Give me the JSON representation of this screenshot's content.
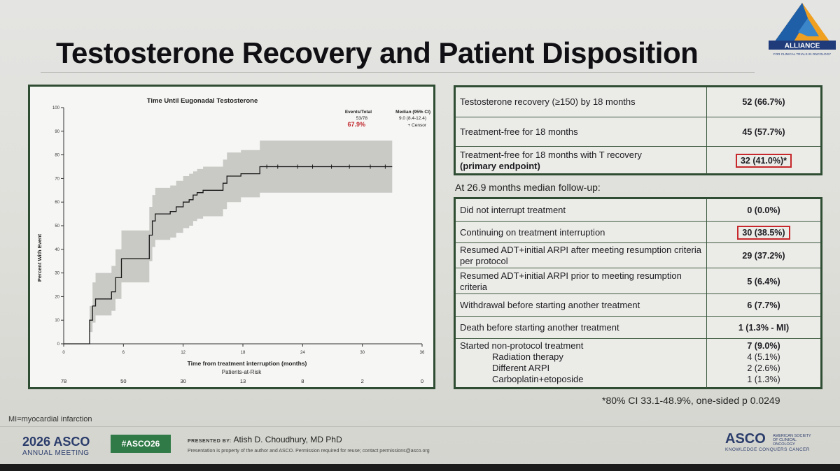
{
  "slide": {
    "title": "Testosterone Recovery and Patient Disposition",
    "logo_text": "ALLIANCE",
    "logo_subtext": "FOR CLINICAL TRIALS IN ONCOLOGY"
  },
  "chart_data": {
    "type": "line",
    "title": "Time Until Eugonadal Testosterone",
    "xlabel": "Time from treatment interruption (months)",
    "ylabel": "Percent With Event",
    "xlim": [
      0,
      36
    ],
    "ylim": [
      0,
      100
    ],
    "x_ticks": [
      0,
      6,
      12,
      18,
      24,
      30,
      36
    ],
    "y_ticks": [
      0,
      10,
      20,
      30,
      40,
      50,
      60,
      70,
      80,
      90,
      100
    ],
    "legend": {
      "header_events": "Events/Total",
      "header_median": "Median (95% CI)",
      "events_value": "53/78",
      "median_value": "9.0 (8.4-12.4)",
      "percent": "67.9%",
      "censor_label": "+ Censor"
    },
    "risk_table": {
      "label": "Patients-at-Risk",
      "values": [
        "78",
        "50",
        "30",
        "13",
        "8",
        "2",
        "0"
      ]
    },
    "series": [
      {
        "x": [
          0,
          2.3,
          2.6,
          2.9,
          3.2,
          4.5,
          4.8,
          5.2,
          5.8,
          8.4,
          8.6,
          8.9,
          9.2,
          10.4,
          10.7,
          11.3,
          12.0,
          12.6,
          13.0,
          13.4,
          14.0,
          15.4,
          16.0,
          16.4,
          17.8,
          18.5,
          19.7,
          21.5,
          33.0
        ],
        "y": [
          0,
          0,
          10,
          16,
          19,
          19,
          22,
          28,
          36,
          36,
          46,
          52,
          55,
          55,
          56,
          58,
          60,
          61,
          63,
          64,
          65,
          65,
          68,
          71,
          72,
          72,
          75,
          75,
          75
        ]
      }
    ],
    "band_upper": [
      0,
      0,
      16,
      26,
      30,
      30,
      33,
      40,
      48,
      48,
      58,
      63,
      66,
      66,
      67,
      69,
      71,
      72,
      73,
      74,
      75,
      75,
      78,
      81,
      82,
      82,
      86,
      86,
      86
    ],
    "band_lower": [
      0,
      0,
      5,
      9,
      12,
      12,
      14,
      19,
      26,
      26,
      35,
      41,
      44,
      44,
      45,
      47,
      49,
      50,
      52,
      53,
      54,
      54,
      57,
      60,
      62,
      62,
      64,
      64,
      64
    ],
    "censor_x": [
      20.4,
      21.5,
      23.5,
      25.0,
      26.9,
      28.7,
      30.8,
      32.3
    ]
  },
  "table1": {
    "rows": [
      {
        "label": "Testosterone recovery (≥150) by 18 months",
        "value": "52 (66.7%)"
      },
      {
        "label": "Treatment-free for 18 months",
        "value": "45 (57.7%)"
      },
      {
        "label": "Treatment-free for 18 months with T recovery",
        "label_bold": "(primary endpoint)",
        "value": "32 (41.0%)*"
      }
    ]
  },
  "followup_label": "At 26.9 months median follow-up:",
  "table2": {
    "rows": [
      {
        "label": "Did not interrupt treatment",
        "value": "0 (0.0%)"
      },
      {
        "label": "Continuing on treatment interruption",
        "value": "30 (38.5%)"
      },
      {
        "label": "Resumed ADT+initial ARPI after meeting resumption criteria per protocol",
        "value": "29 (37.2%)"
      },
      {
        "label": "Resumed ADT+initial ARPI prior to meeting resumption criteria",
        "value": "5 (6.4%)"
      },
      {
        "label": "Withdrawal before starting another treatment",
        "value": "6 (7.7%)"
      },
      {
        "label": "Death before starting another treatment",
        "value": "1 (1.3% - MI)"
      },
      {
        "label": "Started non-protocol treatment",
        "value": "7 (9.0%)",
        "subs": [
          {
            "label": "Radiation therapy",
            "value": "4 (5.1%)"
          },
          {
            "label": "Different ARPI",
            "value": "2 (2.6%)"
          },
          {
            "label": "Carboplatin+etoposide",
            "value": "1 (1.3%)"
          }
        ]
      }
    ]
  },
  "footnote": "*80% CI 33.1-48.9%, one-sided p 0.0249",
  "mi_note": "MI=myocardial infarction",
  "footer": {
    "meeting_year": "2026 ASCO",
    "meeting_name": "ANNUAL MEETING",
    "hashtag": "#ASCO26",
    "presented_by_label": "PRESENTED BY:",
    "presenter": "Atish D. Choudhury, MD PhD",
    "disclaimer": "Presentation is property of the author and ASCO. Permission required for reuse; contact permissions@asco.org",
    "asco": "ASCO",
    "asco_society": "AMERICAN SOCIETY OF CLINICAL ONCOLOGY",
    "asco_tagline": "KNOWLEDGE CONQUERS CANCER"
  },
  "colors": {
    "frame_green": "#2e4d32",
    "highlight_red": "#c6282b",
    "legend_red": "#c0262b",
    "band_gray": "#c9c9c6",
    "hashtag_green": "#2f7a46",
    "asco_blue": "#2b3d6b"
  }
}
